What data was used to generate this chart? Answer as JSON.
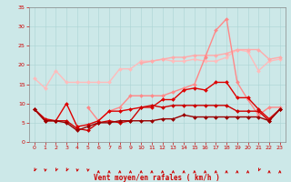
{
  "x": [
    0,
    1,
    2,
    3,
    4,
    5,
    6,
    7,
    8,
    9,
    10,
    11,
    12,
    13,
    14,
    15,
    16,
    17,
    18,
    19,
    20,
    21,
    22,
    23
  ],
  "series": [
    {
      "name": "line1_lightest_pink",
      "color": "#ffbbbb",
      "linewidth": 1.0,
      "marker": "D",
      "markersize": 2.0,
      "values": [
        16.5,
        14.0,
        18.5,
        15.5,
        15.5,
        15.5,
        15.5,
        15.5,
        19.0,
        19.0,
        21.0,
        21.0,
        21.5,
        21.0,
        21.0,
        21.5,
        21.0,
        21.0,
        22.0,
        24.0,
        23.5,
        18.5,
        21.0,
        21.5
      ]
    },
    {
      "name": "line2_light_pink",
      "color": "#ffaaaa",
      "linewidth": 1.0,
      "marker": "D",
      "markersize": 2.0,
      "values": [
        null,
        null,
        null,
        null,
        null,
        null,
        null,
        null,
        null,
        null,
        20.5,
        21.0,
        21.5,
        22.0,
        22.0,
        22.5,
        22.5,
        22.5,
        23.0,
        24.0,
        24.0,
        24.0,
        21.5,
        22.0
      ]
    },
    {
      "name": "line3_mid_pink",
      "color": "#ff8888",
      "linewidth": 1.0,
      "marker": "D",
      "markersize": 2.0,
      "values": [
        null,
        null,
        null,
        null,
        null,
        9.0,
        5.5,
        8.0,
        9.0,
        12.0,
        12.0,
        12.0,
        12.0,
        13.0,
        14.0,
        15.0,
        22.0,
        29.0,
        32.0,
        15.5,
        11.0,
        7.0,
        9.0,
        9.0
      ]
    },
    {
      "name": "line4_dark_red",
      "color": "#dd0000",
      "linewidth": 1.0,
      "marker": "D",
      "markersize": 2.0,
      "values": [
        8.5,
        6.0,
        5.5,
        10.0,
        4.0,
        4.5,
        5.5,
        8.0,
        8.0,
        8.5,
        9.0,
        9.0,
        11.0,
        11.0,
        13.5,
        14.0,
        13.5,
        15.5,
        15.5,
        11.5,
        11.5,
        8.5,
        6.0,
        8.5
      ]
    },
    {
      "name": "line5_med_red",
      "color": "#cc0000",
      "linewidth": 1.0,
      "marker": "D",
      "markersize": 2.0,
      "values": [
        8.5,
        5.5,
        5.5,
        5.5,
        3.5,
        3.0,
        5.0,
        5.5,
        5.0,
        5.5,
        9.0,
        9.5,
        9.0,
        9.5,
        9.5,
        9.5,
        9.5,
        9.5,
        9.5,
        8.0,
        8.0,
        8.0,
        5.5,
        8.5
      ]
    },
    {
      "name": "line6_darkest_red",
      "color": "#990000",
      "linewidth": 1.0,
      "marker": "D",
      "markersize": 2.0,
      "values": [
        8.5,
        5.5,
        5.5,
        5.0,
        3.0,
        4.0,
        5.0,
        5.0,
        5.5,
        5.5,
        5.5,
        5.5,
        6.0,
        6.0,
        7.0,
        6.5,
        6.5,
        6.5,
        6.5,
        6.5,
        6.5,
        6.5,
        5.5,
        8.5
      ]
    }
  ],
  "xlim": [
    -0.5,
    23.5
  ],
  "ylim": [
    0,
    35
  ],
  "yticks": [
    0,
    5,
    10,
    15,
    20,
    25,
    30,
    35
  ],
  "xticks": [
    0,
    1,
    2,
    3,
    4,
    5,
    6,
    7,
    8,
    9,
    10,
    11,
    12,
    13,
    14,
    15,
    16,
    17,
    18,
    19,
    20,
    21,
    22,
    23
  ],
  "xlabel": "Vent moyen/en rafales ( km/h )",
  "bg_color": "#cce8e8",
  "grid_color": "#aad4d4",
  "tick_color": "#cc0000",
  "label_color": "#cc0000",
  "arrow_color": "#cc0000",
  "arrow_angles": [
    225,
    200,
    225,
    225,
    200,
    200,
    0,
    0,
    0,
    0,
    0,
    0,
    0,
    0,
    0,
    0,
    0,
    0,
    0,
    0,
    0,
    225,
    0,
    0
  ]
}
